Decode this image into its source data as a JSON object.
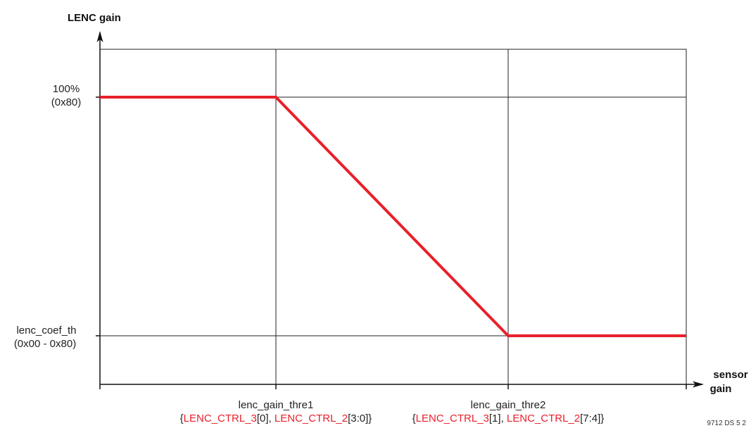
{
  "y_axis_label": "LENC gain",
  "x_axis_label": [
    "sensor",
    "gain"
  ],
  "y_ticks": {
    "top": {
      "value": "100%",
      "code": "(0x80)"
    },
    "bottom": {
      "value": "lenc_coef_th",
      "code": "(0x00 - 0x80)"
    }
  },
  "x_ticks": [
    {
      "name": "lenc_gain_thre1",
      "parts": {
        "open": "{",
        "reg1": "LENC_CTRL_3",
        "bits1": "[0], ",
        "reg2": "LENC_CTRL_2",
        "bits2": "[3:0]}"
      }
    },
    {
      "name": "lenc_gain_thre2",
      "parts": {
        "open": "{",
        "reg1": "LENC_CTRL_3",
        "bits1": "[1], ",
        "reg2": "LENC_CTRL_2",
        "bits2": "[7:4]}"
      }
    }
  ],
  "figure_id": "9712 DS 5 2",
  "colors": {
    "curve": "#e8202a",
    "register": "#e8202a",
    "axis": "#111111",
    "grid": "#222222"
  }
}
